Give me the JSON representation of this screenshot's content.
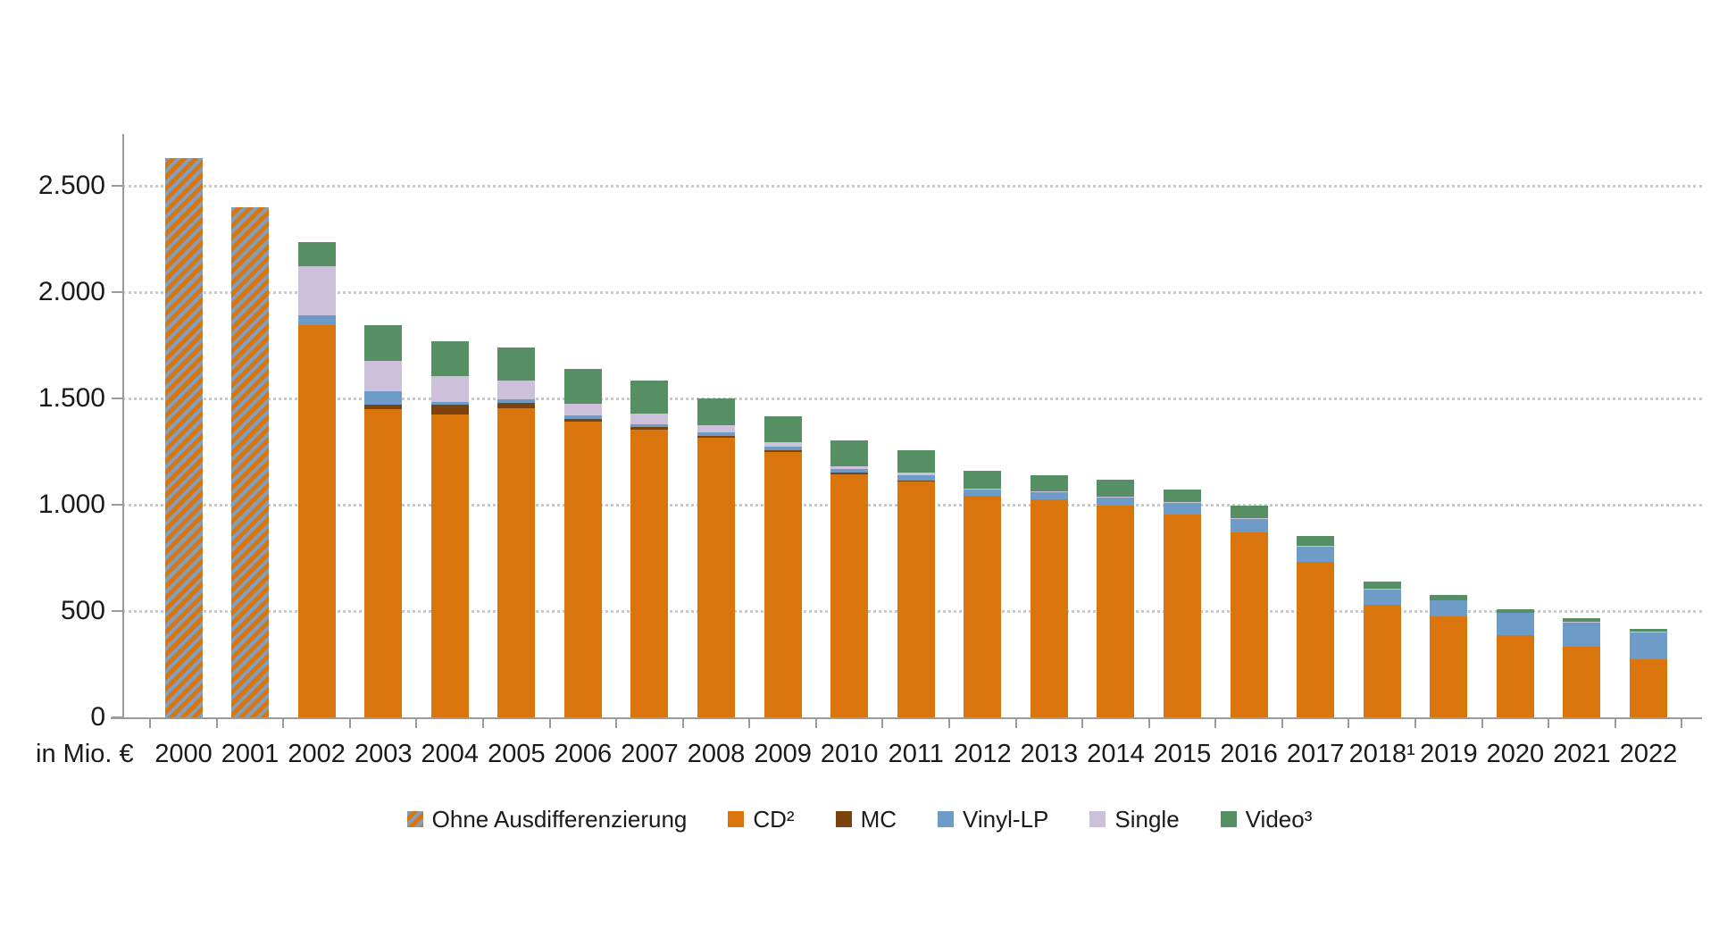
{
  "chart_data": {
    "type": "bar",
    "stacked": true,
    "title": "",
    "xlabel": "in Mio. €",
    "ylabel": "",
    "ylim": [
      0,
      2750
    ],
    "grid": "horizontal-dotted",
    "legend_position": "bottom",
    "y_axis": {
      "tick_labels": [
        "0",
        "500",
        "1.000",
        "1.500",
        "2.000",
        "2.500"
      ],
      "tick_values": [
        0,
        500,
        1000,
        1500,
        2000,
        2500
      ]
    },
    "categories": [
      "2000",
      "2001",
      "2002",
      "2003",
      "2004",
      "2005",
      "2006",
      "2007",
      "2008",
      "2009",
      "2010",
      "2011",
      "2012",
      "2013",
      "2014",
      "2015",
      "2016",
      "2017",
      "2018¹",
      "2019",
      "2020",
      "2021",
      "2022"
    ],
    "series": [
      {
        "name": "Ohne Ausdifferenzierung",
        "color": "hatch",
        "values": [
          2630,
          2400,
          0,
          0,
          0,
          0,
          0,
          0,
          0,
          0,
          0,
          0,
          0,
          0,
          0,
          0,
          0,
          0,
          0,
          0,
          0,
          0,
          0
        ]
      },
      {
        "name": "CD²",
        "color": "#d9750c",
        "values": [
          0,
          0,
          1845,
          1448,
          1425,
          1455,
          1390,
          1355,
          1315,
          1250,
          1145,
          1110,
          1040,
          1025,
          995,
          955,
          870,
          730,
          530,
          475,
          385,
          330,
          275
        ]
      },
      {
        "name": "MC",
        "color": "#7b440f",
        "values": [
          0,
          0,
          0,
          24,
          47,
          25,
          15,
          10,
          10,
          8,
          7,
          5,
          0,
          0,
          0,
          0,
          0,
          0,
          0,
          0,
          0,
          0,
          0
        ]
      },
      {
        "name": "Vinyl-LP",
        "color": "#6e9cc9",
        "values": [
          0,
          0,
          45,
          60,
          13,
          15,
          15,
          15,
          15,
          15,
          15,
          25,
          30,
          35,
          40,
          55,
          65,
          75,
          75,
          75,
          105,
          118,
          125
        ]
      },
      {
        "name": "Single",
        "color": "#cdc0db",
        "values": [
          0,
          0,
          230,
          145,
          120,
          90,
          55,
          50,
          35,
          20,
          15,
          10,
          5,
          5,
          3,
          2,
          2,
          2,
          2,
          0,
          0,
          2,
          3
        ]
      },
      {
        "name": "Video³",
        "color": "#568f63",
        "values": [
          0,
          0,
          115,
          168,
          165,
          155,
          165,
          155,
          125,
          125,
          120,
          105,
          85,
          75,
          80,
          60,
          60,
          45,
          30,
          25,
          20,
          15,
          12
        ]
      }
    ],
    "totals": [
      2630,
      2400,
      2235,
      1845,
      1770,
      1740,
      1640,
      1585,
      1500,
      1418,
      1302,
      1255,
      1160,
      1140,
      1118,
      1072,
      997,
      852,
      637,
      575,
      510,
      465,
      415
    ]
  },
  "colors": {
    "background": "#ffffff",
    "axis": "#9b9b9b",
    "gridline": "#c9c9c9",
    "text": "#1a1a1a",
    "hatch_blue": "#7fa0c1",
    "hatch_orange": "#d9750c"
  }
}
